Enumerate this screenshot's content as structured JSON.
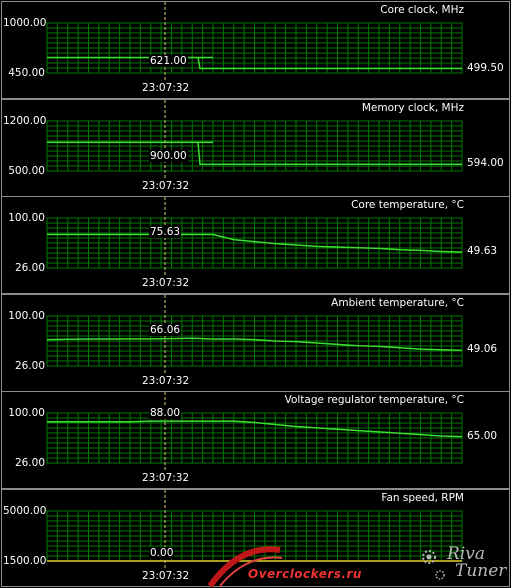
{
  "cursor_time": "23:07:32",
  "colors": {
    "line": "#3ddc32",
    "grid": "#007a00",
    "cursor": "#d8c878",
    "border": "#8c8c8c"
  },
  "panels": [
    {
      "title": "Core clock, MHz",
      "ymax": "1000.00",
      "ymin": "450.00",
      "current": "499.50",
      "cursor_value": "621.00"
    },
    {
      "title": "Memory clock, MHz",
      "ymax": "1200.00",
      "ymin": "500.00",
      "current": "594.00",
      "cursor_value": "900.00"
    },
    {
      "title": "Core temperature, °C",
      "ymax": "100.00",
      "ymin": "26.00",
      "current": "49.63",
      "cursor_value": "75.63"
    },
    {
      "title": "Ambient temperature, °C",
      "ymax": "100.00",
      "ymin": "26.00",
      "current": "49.06",
      "cursor_value": "66.06"
    },
    {
      "title": "Voltage regulator temperature, °C",
      "ymax": "100.00",
      "ymin": "26.00",
      "current": "65.00",
      "cursor_value": "88.00"
    },
    {
      "title": "Fan speed, RPM",
      "ymax": "5000.00",
      "ymin": "1500.00",
      "current": "",
      "cursor_value": "0.00"
    }
  ],
  "chart_data": [
    {
      "type": "line",
      "title": "Core clock, MHz",
      "ylim": [
        450,
        1000
      ],
      "series": [
        {
          "values": [
            621,
            621,
            621,
            621,
            621,
            621,
            621,
            621,
            621,
            499.5,
            499.5,
            499.5,
            499.5,
            499.5,
            499.5,
            499.5,
            499.5,
            499.5,
            499.5,
            499.5,
            499.5
          ]
        }
      ]
    },
    {
      "type": "line",
      "title": "Memory clock, MHz",
      "ylim": [
        500,
        1200
      ],
      "series": [
        {
          "values": [
            900,
            900,
            900,
            900,
            900,
            900,
            900,
            900,
            900,
            594,
            594,
            594,
            594,
            594,
            594,
            594,
            594,
            594,
            594,
            594,
            594
          ]
        }
      ]
    },
    {
      "type": "line",
      "title": "Core temperature, °C",
      "ylim": [
        26,
        100
      ],
      "series": [
        {
          "values": [
            75.63,
            75.63,
            75.63,
            75.63,
            75.63,
            75.63,
            75.63,
            75.63,
            75.63,
            68,
            65,
            62,
            60,
            58,
            57,
            56,
            55,
            53,
            52,
            50.5,
            49.63
          ]
        }
      ]
    },
    {
      "type": "line",
      "title": "Ambient temperature, °C",
      "ylim": [
        26,
        100
      ],
      "series": [
        {
          "values": [
            65,
            65.5,
            66,
            66,
            66.06,
            66.06,
            66.5,
            67,
            66,
            66,
            65,
            63,
            62,
            60,
            58,
            56,
            55,
            53,
            51,
            50,
            49.06
          ]
        }
      ]
    },
    {
      "type": "line",
      "title": "Voltage regulator temperature, °C",
      "ylim": [
        26,
        100
      ],
      "series": [
        {
          "values": [
            87,
            87,
            87,
            87,
            87,
            88,
            88,
            88,
            88,
            88,
            86,
            83,
            80,
            78,
            76,
            74,
            72,
            70,
            68,
            66,
            65
          ]
        }
      ]
    },
    {
      "type": "line",
      "title": "Fan speed, RPM",
      "ylim": [
        1500,
        5000
      ],
      "series": [
        {
          "values": [
            0,
            0,
            0,
            0,
            0,
            0,
            0,
            0,
            0,
            0,
            0,
            0,
            0,
            0,
            0,
            0,
            0,
            0,
            0,
            0,
            0
          ]
        }
      ]
    }
  ],
  "watermark": {
    "site": "Overclockers.ru",
    "logo": "RivaTuner"
  }
}
